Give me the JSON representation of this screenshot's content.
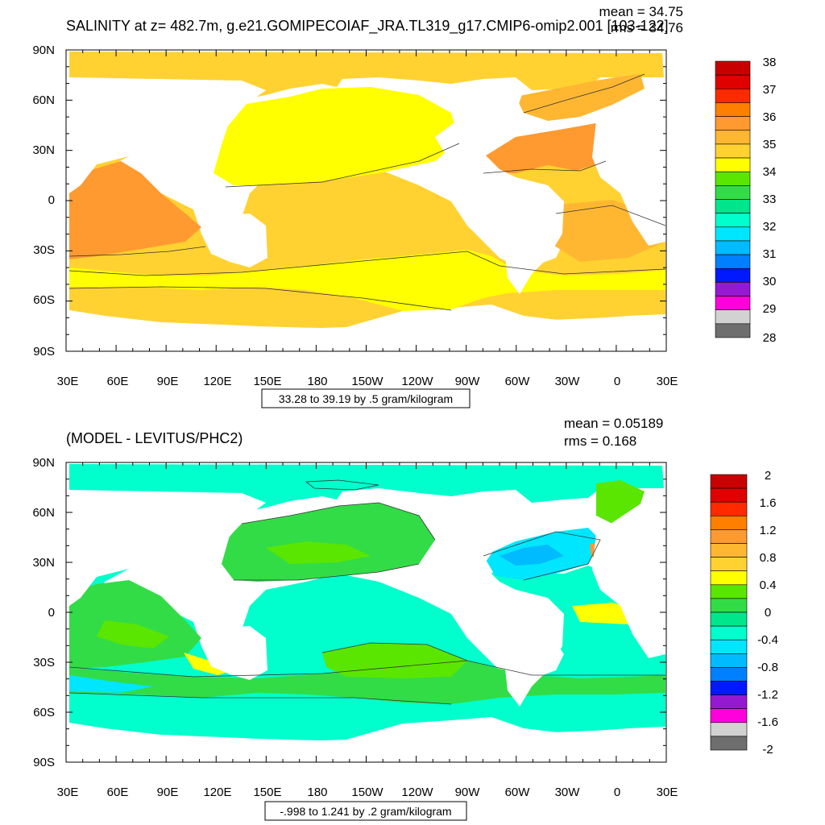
{
  "panels": [
    {
      "title": "SALINITY at z= 482.7m, g.e21.GOMIPECOIAF_JRA.TL319_g17.CMIP6-omip2.001 [103-122]",
      "stats": [
        "mean = 34.75",
        "rms = 34.76"
      ],
      "range_label": "33.28 to 39.19 by .5 gram/kilogram"
    },
    {
      "title": "(MODEL - LEVITUS/PHC2)",
      "stats": [
        "mean = 0.05189",
        "rms = 0.168"
      ],
      "range_label": "-.998 to 1.241 by .2 gram/kilogram"
    }
  ],
  "chart_data": [
    {
      "type": "heatmap",
      "title": "SALINITY at z= 482.7m, g.e21.GOMIPECOIAF_JRA.TL319_g17.CMIP6-omip2.001 [103-122]",
      "mean": 34.75,
      "rms": 34.76,
      "min": 33.28,
      "max": 39.19,
      "interval": 0.5,
      "units": "gram/kilogram",
      "x_ticks": [
        "30E",
        "60E",
        "90E",
        "120E",
        "150E",
        "180",
        "150W",
        "120W",
        "90W",
        "60W",
        "30W",
        "0",
        "30E"
      ],
      "y_ticks": [
        "90N",
        "60N",
        "30N",
        "0",
        "30S",
        "60S",
        "90S"
      ],
      "colorbar_labels": [
        "38",
        "37",
        "36",
        "35",
        "34",
        "33",
        "32",
        "31",
        "30",
        "29",
        "28"
      ],
      "colorbar_colors": [
        "#c80000",
        "#e00000",
        "#ff2a00",
        "#ff7f00",
        "#ff9a30",
        "#ffb732",
        "#ffd232",
        "#ffff00",
        "#5ae600",
        "#32dc46",
        "#00e68c",
        "#00ffcc",
        "#00e6ff",
        "#00bbff",
        "#0080ff",
        "#0019ff",
        "#9619d2",
        "#ff00dc",
        "#d2d2d2",
        "#6e6e6e"
      ],
      "field_colors": {
        "ocean_main": "#ffd232",
        "atlantic_subtropics": "#ff9a30",
        "north_pacific": "#ffff00",
        "indian": "#ffb732",
        "southern_band": "#ffff00",
        "land": "#ffffff"
      }
    },
    {
      "type": "heatmap",
      "title": "(MODEL - LEVITUS/PHC2)",
      "mean": 0.05189,
      "rms": 0.168,
      "min": -0.998,
      "max": 1.241,
      "interval": 0.2,
      "units": "gram/kilogram",
      "x_ticks": [
        "30E",
        "60E",
        "90E",
        "120E",
        "150E",
        "180",
        "150W",
        "120W",
        "90W",
        "60W",
        "30W",
        "0",
        "30E"
      ],
      "y_ticks": [
        "90N",
        "60N",
        "30N",
        "0",
        "30S",
        "60S",
        "90S"
      ],
      "colorbar_labels": [
        "2",
        "1.6",
        "1.2",
        "0.8",
        "0.4",
        "0",
        "-0.4",
        "-0.8",
        "-1.2",
        "-1.6",
        "-2"
      ],
      "colorbar_colors": [
        "#c80000",
        "#e00000",
        "#ff2a00",
        "#ff7f00",
        "#ff9a30",
        "#ffb732",
        "#ffd232",
        "#ffff00",
        "#5ae600",
        "#32dc46",
        "#00e68c",
        "#00ffcc",
        "#00e6ff",
        "#00bbff",
        "#0080ff",
        "#0019ff",
        "#9619d2",
        "#ff00dc",
        "#d2d2d2",
        "#6e6e6e"
      ],
      "field_colors": {
        "ocean_main": "#00ffcc",
        "positive_band": "#32dc46",
        "positive_strong": "#5ae600",
        "negative": "#00e6ff",
        "land": "#ffffff"
      }
    }
  ]
}
